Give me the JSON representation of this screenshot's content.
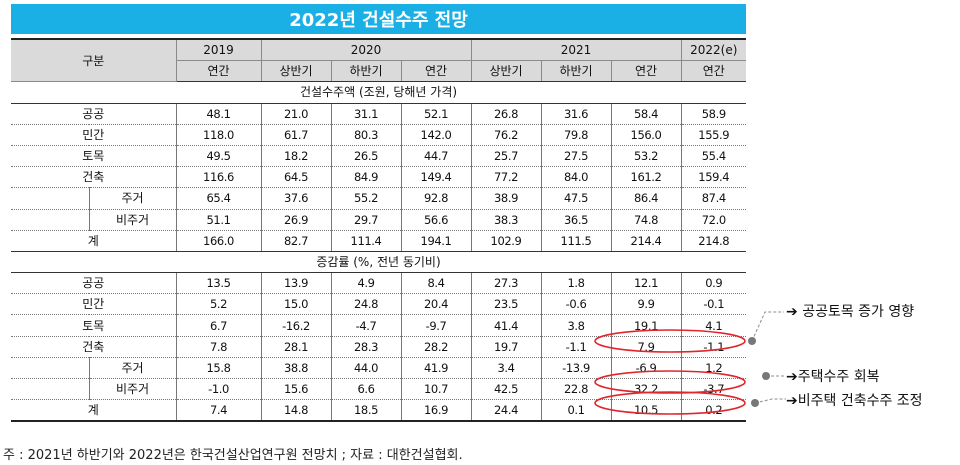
{
  "title": "2022년 건설수주 전망",
  "header": {
    "category": "구분",
    "years": [
      "2019",
      "2020",
      "2021",
      "2022(e)"
    ],
    "periods": [
      "연간",
      "상반기",
      "하반기",
      "연간",
      "상반기",
      "하반기",
      "연간",
      "연간"
    ]
  },
  "section1": {
    "title": "건설수주액 (조원, 당해년 가격)",
    "rows": [
      {
        "label": "공공",
        "values": [
          "48.1",
          "21.0",
          "31.1",
          "52.1",
          "26.8",
          "31.6",
          "58.4",
          "58.9"
        ]
      },
      {
        "label": "민간",
        "values": [
          "118.0",
          "61.7",
          "80.3",
          "142.0",
          "76.2",
          "79.8",
          "156.0",
          "155.9"
        ]
      },
      {
        "label": "토목",
        "values": [
          "49.5",
          "18.2",
          "26.5",
          "44.7",
          "25.7",
          "27.5",
          "53.2",
          "55.4"
        ]
      },
      {
        "label": "건축",
        "values": [
          "116.6",
          "64.5",
          "84.9",
          "149.4",
          "77.2",
          "84.0",
          "161.2",
          "159.4"
        ]
      },
      {
        "label": "주거",
        "values": [
          "65.4",
          "37.6",
          "55.2",
          "92.8",
          "38.9",
          "47.5",
          "86.4",
          "87.4"
        ]
      },
      {
        "label": "비주거",
        "values": [
          "51.1",
          "26.9",
          "29.7",
          "56.6",
          "38.3",
          "36.5",
          "74.8",
          "72.0"
        ]
      },
      {
        "label": "계",
        "values": [
          "166.0",
          "82.7",
          "111.4",
          "194.1",
          "102.9",
          "111.5",
          "214.4",
          "214.8"
        ]
      }
    ]
  },
  "section2": {
    "title": "증감률 (%, 전년 동기비)",
    "rows": [
      {
        "label": "공공",
        "values": [
          "13.5",
          "13.9",
          "4.9",
          "8.4",
          "27.3",
          "1.8",
          "12.1",
          "0.9"
        ]
      },
      {
        "label": "민간",
        "values": [
          "5.2",
          "15.0",
          "24.8",
          "20.4",
          "23.5",
          "-0.6",
          "9.9",
          "-0.1"
        ]
      },
      {
        "label": "토목",
        "values": [
          "6.7",
          "-16.2",
          "-4.7",
          "-9.7",
          "41.4",
          "3.8",
          "19.1",
          "4.1"
        ]
      },
      {
        "label": "건축",
        "values": [
          "7.8",
          "28.1",
          "28.3",
          "28.2",
          "19.7",
          "-1.1",
          "7.9",
          "-1.1"
        ]
      },
      {
        "label": "주거",
        "values": [
          "15.8",
          "38.8",
          "44.0",
          "41.9",
          "3.4",
          "-13.9",
          "-6.9",
          "1.2"
        ]
      },
      {
        "label": "비주거",
        "values": [
          "-1.0",
          "15.6",
          "6.6",
          "10.7",
          "42.5",
          "22.8",
          "32.2",
          "-3.7"
        ]
      },
      {
        "label": "계",
        "values": [
          "7.4",
          "14.8",
          "18.5",
          "16.9",
          "24.4",
          "0.1",
          "10.5",
          "0.2"
        ]
      }
    ]
  },
  "annotations": [
    "공공토목 증가 영향",
    "주택수주 회복",
    "비주택 건축수주 조정"
  ],
  "footnote": "주 : 2021년 하반기와 2022년은 한국건설산업연구원 전망치 ; 자료 : 대한건설협회.",
  "colors": {
    "title_bg": "#1ab0e6",
    "header_bg": "#dadada",
    "highlight": "#e0262c"
  }
}
